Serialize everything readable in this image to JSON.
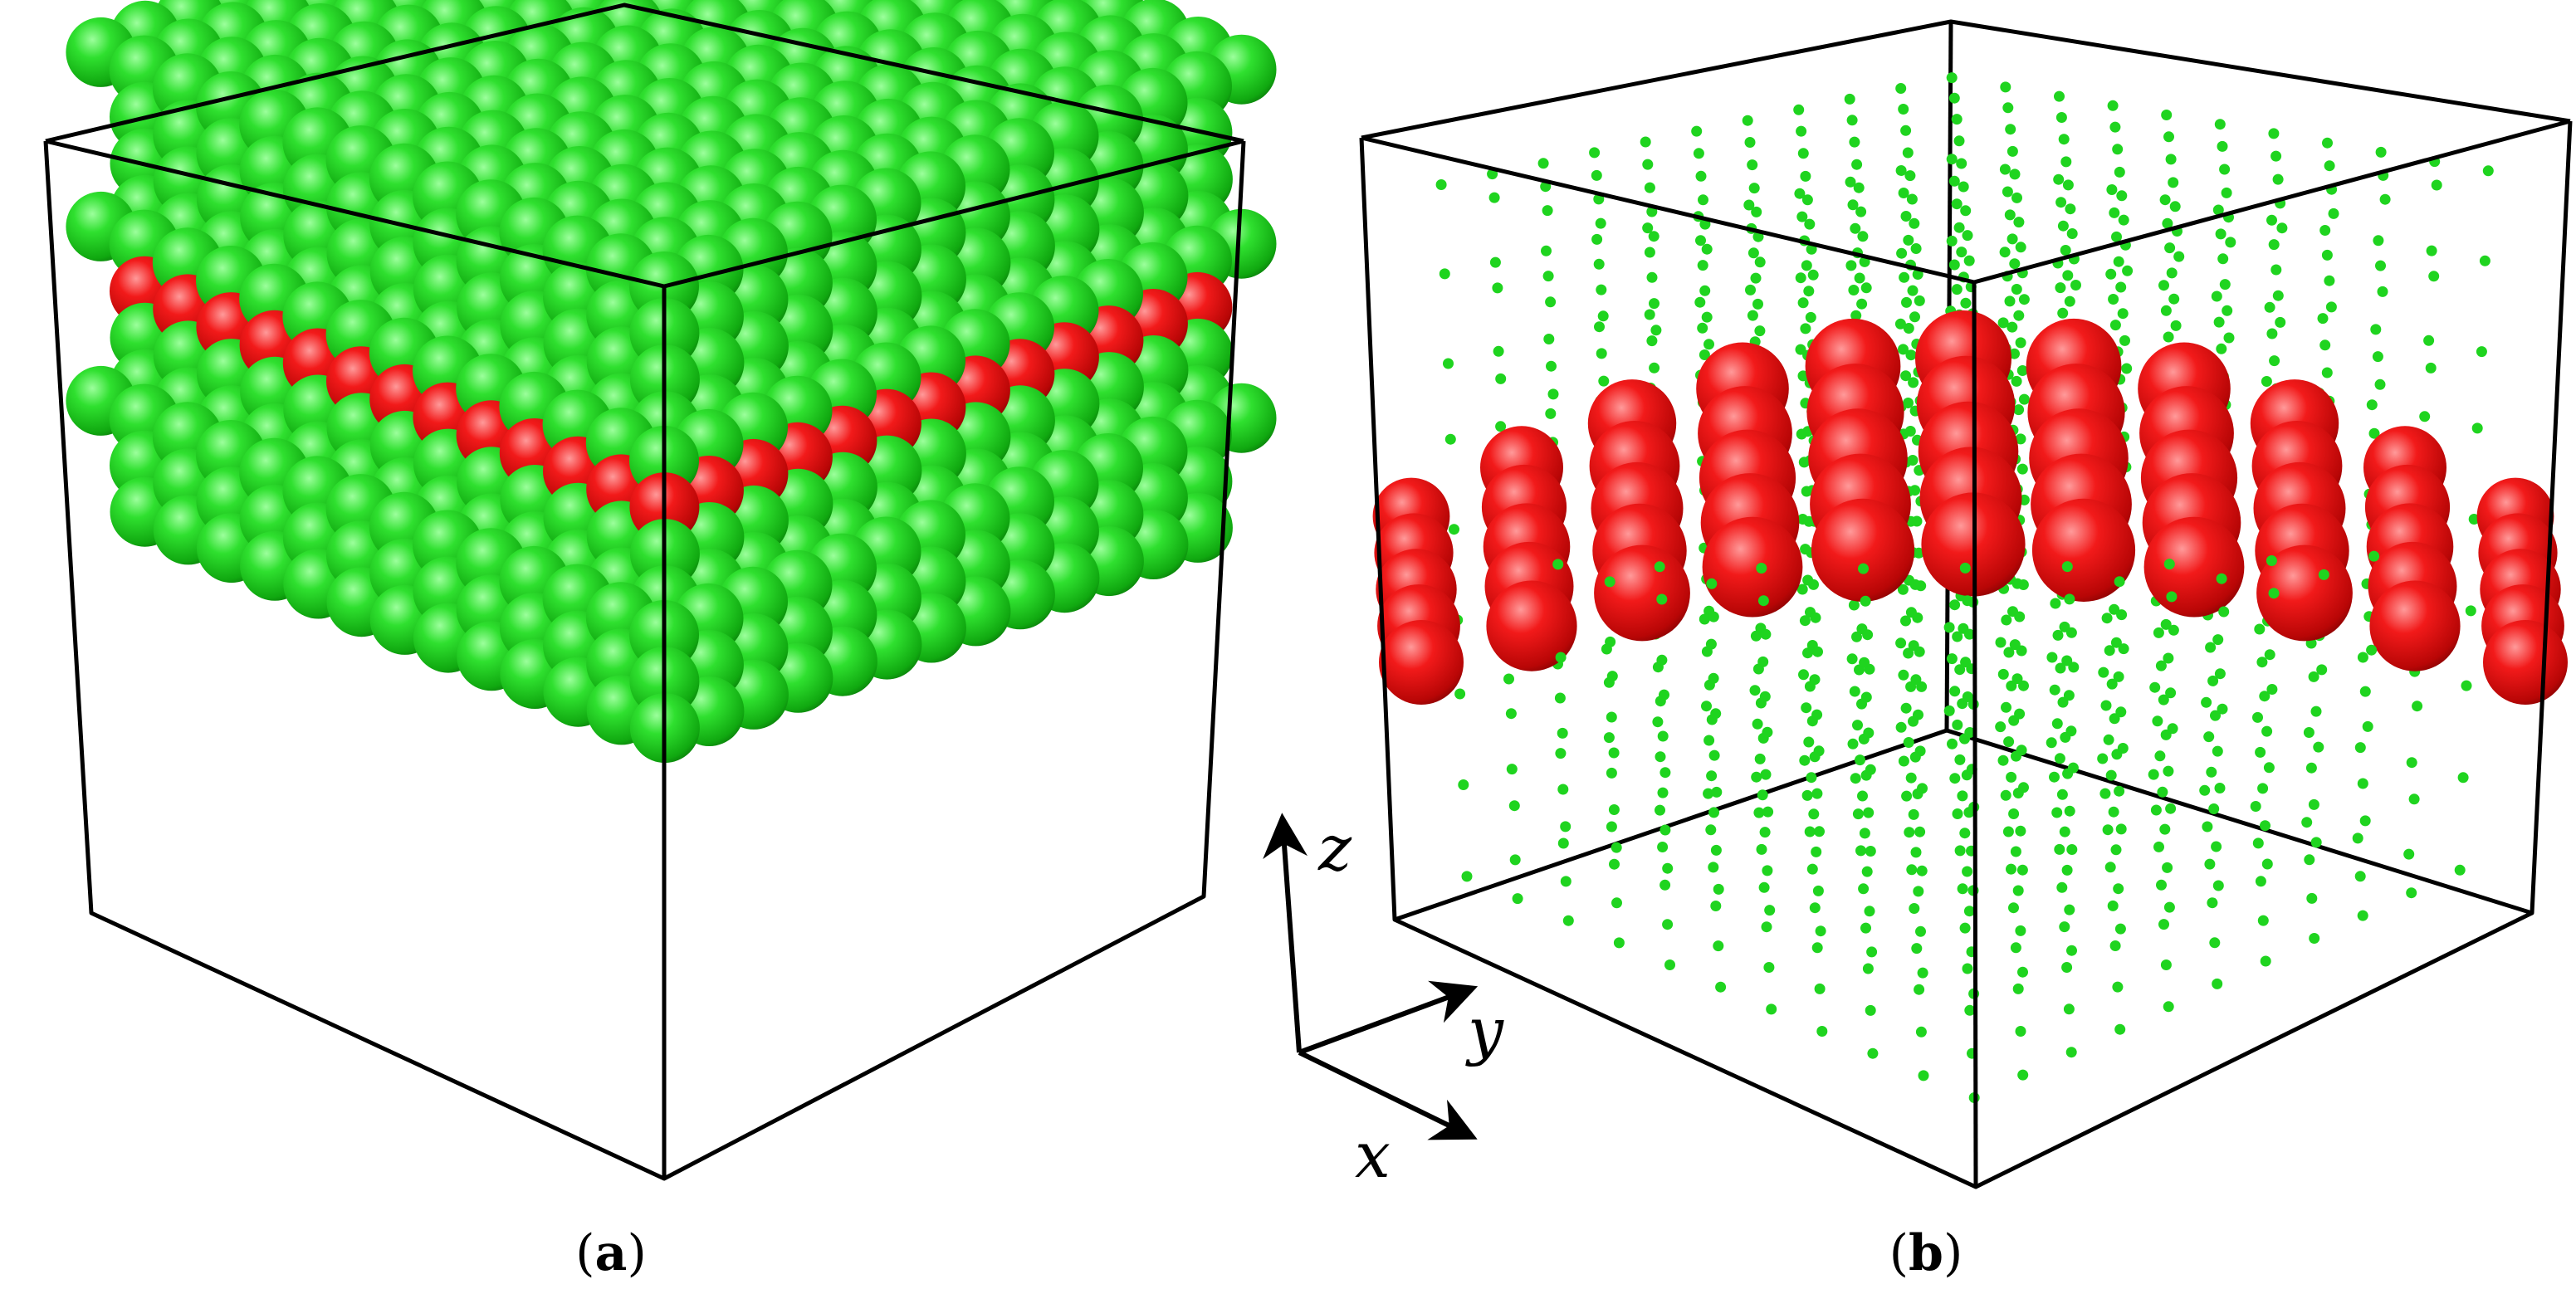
{
  "panels": [
    {
      "id": "a",
      "label": "a"
    },
    {
      "id": "b",
      "label": "b"
    }
  ],
  "axes": {
    "x": "x",
    "y": "y",
    "z": "z"
  },
  "colors": {
    "solvent_atom": "#22d422",
    "plane_atom": "#e61010",
    "box_edge": "#000000"
  }
}
